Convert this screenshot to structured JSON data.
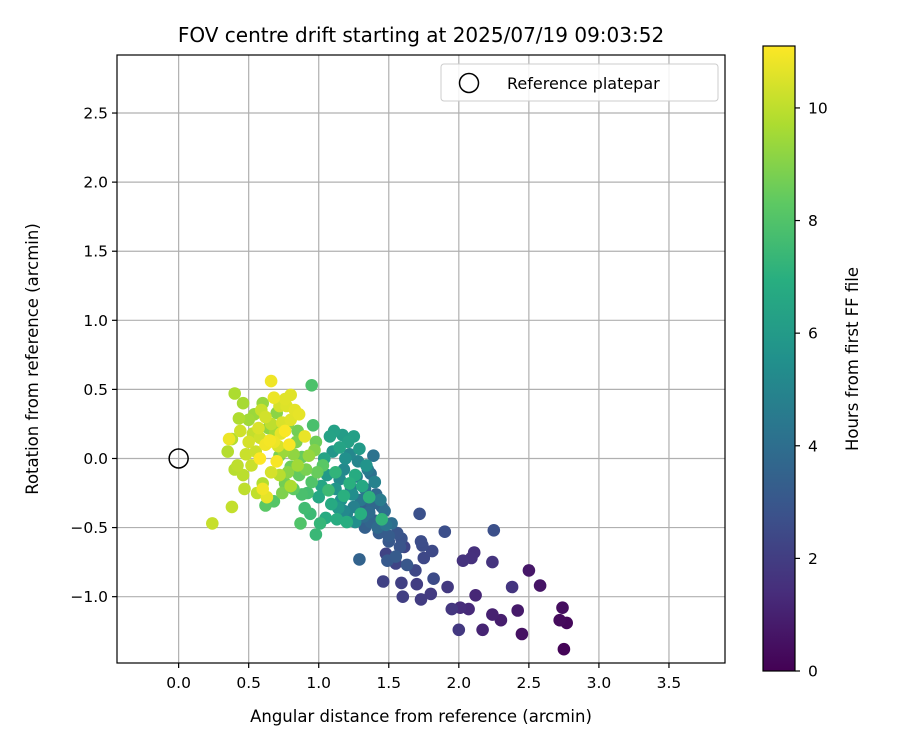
{
  "chart_data": {
    "type": "scatter",
    "title": "FOV centre drift starting at 2025/07/19 09:03:52",
    "xlabel": "Angular distance from reference (arcmin)",
    "ylabel": "Rotation from reference (arcmin)",
    "xlim": [
      -0.44,
      3.9
    ],
    "ylim": [
      -1.48,
      2.92
    ],
    "xticks": [
      0.0,
      0.5,
      1.0,
      1.5,
      2.0,
      2.5,
      3.0,
      3.5
    ],
    "xtick_labels": [
      "0.0",
      "0.5",
      "1.0",
      "1.5",
      "2.0",
      "2.5",
      "3.0",
      "3.5"
    ],
    "yticks": [
      -1.0,
      -0.5,
      0.0,
      0.5,
      1.0,
      1.5,
      2.0,
      2.5
    ],
    "ytick_labels": [
      "−1.0",
      "−0.5",
      "0.0",
      "0.5",
      "1.0",
      "1.5",
      "2.0",
      "2.5"
    ],
    "grid": true,
    "colormap": "viridis",
    "colorbar": {
      "label": "Hours from first FF file",
      "range": [
        0,
        11.1
      ],
      "ticks": [
        0,
        2,
        4,
        6,
        8,
        10
      ],
      "tick_labels": [
        "0",
        "2",
        "4",
        "6",
        "8",
        "10"
      ]
    },
    "legend": {
      "placement": "top-right",
      "entries": [
        {
          "label": "Reference platepar",
          "marker": "open-circle"
        }
      ]
    },
    "reference_point": {
      "x": 0.0,
      "y": 0.0
    },
    "points_columns": [
      "x",
      "y",
      "hours"
    ],
    "points": [
      [
        2.75,
        -1.38,
        0.1
      ],
      [
        2.77,
        -1.19,
        0.2
      ],
      [
        2.72,
        -1.17,
        0.3
      ],
      [
        2.74,
        -1.08,
        0.4
      ],
      [
        2.45,
        -1.27,
        0.5
      ],
      [
        2.58,
        -0.92,
        0.6
      ],
      [
        2.5,
        -0.81,
        0.7
      ],
      [
        2.42,
        -1.1,
        0.8
      ],
      [
        2.3,
        -1.17,
        0.9
      ],
      [
        2.24,
        -1.13,
        1.0
      ],
      [
        2.17,
        -1.24,
        1.1
      ],
      [
        2.12,
        -0.99,
        1.2
      ],
      [
        2.07,
        -1.09,
        1.3
      ],
      [
        2.01,
        -1.08,
        1.4
      ],
      [
        2.11,
        -0.68,
        1.5
      ],
      [
        2.09,
        -0.72,
        1.55
      ],
      [
        2.03,
        -0.74,
        1.6
      ],
      [
        2.24,
        -0.75,
        1.65
      ],
      [
        2.38,
        -0.93,
        1.7
      ],
      [
        1.95,
        -1.09,
        1.75
      ],
      [
        2.0,
        -1.24,
        1.8
      ],
      [
        1.92,
        -0.93,
        1.85
      ],
      [
        1.8,
        -0.98,
        1.9
      ],
      [
        1.73,
        -1.02,
        1.95
      ],
      [
        1.7,
        -0.91,
        2.0
      ],
      [
        1.6,
        -1.0,
        2.05
      ],
      [
        1.59,
        -0.9,
        2.1
      ],
      [
        1.46,
        -0.89,
        2.15
      ],
      [
        1.48,
        -0.69,
        2.2
      ],
      [
        1.55,
        -0.76,
        2.25
      ],
      [
        1.61,
        -0.64,
        2.3
      ],
      [
        1.69,
        -0.81,
        2.35
      ],
      [
        1.75,
        -0.72,
        2.4
      ],
      [
        1.81,
        -0.67,
        2.45
      ],
      [
        1.82,
        -0.87,
        2.5
      ],
      [
        1.74,
        -0.63,
        2.55
      ],
      [
        1.73,
        -0.6,
        2.6
      ],
      [
        1.9,
        -0.53,
        2.65
      ],
      [
        2.25,
        -0.52,
        2.7
      ],
      [
        1.72,
        -0.4,
        2.75
      ],
      [
        1.59,
        -0.58,
        2.8
      ],
      [
        1.56,
        -0.54,
        2.9
      ],
      [
        1.63,
        -0.77,
        3.0
      ],
      [
        1.5,
        -0.6,
        3.05
      ],
      [
        1.49,
        -0.74,
        3.1
      ],
      [
        1.55,
        -0.71,
        3.15
      ],
      [
        1.43,
        -0.54,
        3.2
      ],
      [
        1.4,
        -0.45,
        3.3
      ],
      [
        1.33,
        -0.5,
        3.4
      ],
      [
        1.29,
        -0.73,
        3.5
      ],
      [
        1.45,
        -0.35,
        3.6
      ],
      [
        1.38,
        -0.33,
        3.7
      ],
      [
        1.41,
        -0.26,
        3.8
      ],
      [
        1.36,
        -0.39,
        3.85
      ],
      [
        1.32,
        -0.42,
        3.9
      ],
      [
        1.47,
        -0.38,
        4.0
      ],
      [
        1.37,
        -0.11,
        4.1
      ],
      [
        1.39,
        0.02,
        4.2
      ],
      [
        1.33,
        -0.22,
        4.3
      ],
      [
        1.3,
        -0.3,
        4.4
      ],
      [
        1.35,
        -0.08,
        4.5
      ],
      [
        1.27,
        -0.13,
        4.6
      ],
      [
        1.23,
        -0.21,
        4.7
      ],
      [
        1.25,
        -0.35,
        4.8
      ],
      [
        1.2,
        -0.4,
        4.9
      ],
      [
        1.28,
        -0.02,
        5.0
      ],
      [
        1.22,
        0.03,
        5.1
      ],
      [
        1.18,
        -0.08,
        5.2
      ],
      [
        1.15,
        -0.15,
        5.3
      ],
      [
        1.24,
        -0.26,
        5.4
      ],
      [
        1.19,
        0.0,
        5.5
      ],
      [
        1.16,
        -0.3,
        5.6
      ],
      [
        1.12,
        -0.22,
        5.7
      ],
      [
        1.1,
        0.05,
        5.8
      ],
      [
        1.14,
        -0.36,
        5.9
      ],
      [
        1.06,
        -0.12,
        6.0
      ],
      [
        1.17,
        0.17,
        6.1
      ],
      [
        1.25,
        0.16,
        6.2
      ],
      [
        1.21,
        0.12,
        6.25
      ],
      [
        1.11,
        0.2,
        6.3
      ],
      [
        1.08,
        0.16,
        6.35
      ],
      [
        1.04,
        0.0,
        6.4
      ],
      [
        1.02,
        -0.2,
        6.5
      ],
      [
        1.0,
        -0.28,
        6.6
      ],
      [
        1.09,
        -0.33,
        6.7
      ],
      [
        1.05,
        -0.43,
        6.8
      ],
      [
        1.13,
        -0.44,
        6.85
      ],
      [
        1.2,
        -0.46,
        6.9
      ],
      [
        1.3,
        -0.4,
        6.95
      ],
      [
        1.22,
        -0.18,
        7.0
      ],
      [
        1.36,
        -0.28,
        7.1
      ],
      [
        1.45,
        -0.44,
        7.2
      ],
      [
        1.01,
        -0.47,
        7.3
      ],
      [
        0.98,
        -0.55,
        7.4
      ],
      [
        0.94,
        -0.4,
        7.5
      ],
      [
        0.9,
        -0.36,
        7.6
      ],
      [
        0.92,
        -0.25,
        7.7
      ],
      [
        0.96,
        0.24,
        7.8
      ],
      [
        0.95,
        0.53,
        7.9
      ],
      [
        0.87,
        -0.47,
        8.0
      ],
      [
        0.68,
        -0.31,
        8.1
      ],
      [
        0.62,
        -0.34,
        8.2
      ],
      [
        0.82,
        -0.22,
        8.3
      ],
      [
        0.86,
        -0.12,
        8.4
      ],
      [
        0.88,
        0.01,
        8.5
      ],
      [
        0.8,
        -0.06,
        8.6
      ],
      [
        0.76,
        -0.18,
        8.7
      ],
      [
        0.72,
        0.02,
        8.8
      ],
      [
        0.84,
        0.12,
        8.9
      ],
      [
        0.78,
        0.25,
        9.0
      ],
      [
        0.7,
        0.33,
        9.1
      ],
      [
        0.64,
        0.22,
        9.2
      ],
      [
        0.6,
        0.4,
        9.3
      ],
      [
        0.54,
        0.32,
        9.4
      ],
      [
        0.5,
        0.28,
        9.5
      ],
      [
        0.46,
        0.4,
        9.6
      ],
      [
        0.4,
        0.47,
        9.7
      ],
      [
        0.43,
        0.29,
        9.75
      ],
      [
        0.38,
        0.14,
        9.8
      ],
      [
        0.35,
        0.05,
        9.85
      ],
      [
        0.4,
        -0.08,
        9.9
      ],
      [
        0.46,
        -0.12,
        9.95
      ],
      [
        0.47,
        -0.22,
        10.0
      ],
      [
        0.56,
        -0.25,
        10.05
      ],
      [
        0.38,
        -0.35,
        10.1
      ],
      [
        0.24,
        -0.47,
        10.15
      ],
      [
        0.52,
        -0.05,
        10.2
      ],
      [
        0.55,
        0.05,
        10.25
      ],
      [
        0.58,
        0.15,
        10.3
      ],
      [
        0.62,
        0.3,
        10.35
      ],
      [
        0.66,
        -0.1,
        10.4
      ],
      [
        0.71,
        0.09,
        10.45
      ],
      [
        0.74,
        0.26,
        10.5
      ],
      [
        0.77,
        0.38,
        10.55
      ],
      [
        0.8,
        0.46,
        10.6
      ],
      [
        0.83,
        0.35,
        10.65
      ],
      [
        0.86,
        0.32,
        10.7
      ],
      [
        0.9,
        0.16,
        10.75
      ],
      [
        0.68,
        0.44,
        10.8
      ],
      [
        0.66,
        0.56,
        10.85
      ],
      [
        0.6,
        -0.22,
        10.9
      ],
      [
        0.65,
        0.13,
        10.95
      ],
      [
        0.7,
        -0.02,
        11.0
      ],
      [
        0.76,
        0.2,
        11.05
      ],
      [
        0.58,
        0.0,
        11.1
      ],
      [
        0.62,
        0.1,
        10.9
      ],
      [
        0.68,
        0.12,
        10.8
      ],
      [
        0.73,
        0.18,
        10.7
      ],
      [
        0.8,
        0.28,
        10.6
      ],
      [
        0.57,
        0.22,
        10.5
      ],
      [
        0.5,
        0.12,
        10.4
      ],
      [
        0.44,
        0.2,
        10.3
      ],
      [
        0.48,
        0.03,
        10.2
      ],
      [
        0.53,
        0.18,
        10.1
      ],
      [
        0.72,
        -0.12,
        9.9
      ],
      [
        0.8,
        -0.2,
        9.7
      ],
      [
        0.85,
        -0.05,
        9.5
      ],
      [
        0.93,
        0.02,
        9.3
      ],
      [
        0.97,
        0.06,
        9.0
      ],
      [
        0.91,
        -0.08,
        8.8
      ],
      [
        0.99,
        -0.1,
        8.5
      ],
      [
        1.03,
        -0.05,
        8.2
      ],
      [
        0.95,
        -0.17,
        8.0
      ],
      [
        0.88,
        -0.26,
        7.8
      ],
      [
        1.07,
        -0.23,
        7.5
      ],
      [
        1.12,
        -0.1,
        7.2
      ],
      [
        1.18,
        -0.27,
        7.0
      ],
      [
        1.26,
        -0.12,
        6.8
      ],
      [
        1.31,
        -0.2,
        6.6
      ],
      [
        1.15,
        0.08,
        6.4
      ],
      [
        1.29,
        0.07,
        6.0
      ],
      [
        1.34,
        -0.05,
        5.7
      ],
      [
        1.26,
        -0.46,
        5.4
      ],
      [
        1.18,
        -0.38,
        5.2
      ],
      [
        1.4,
        -0.17,
        4.9
      ],
      [
        1.44,
        -0.3,
        4.6
      ],
      [
        1.48,
        -0.48,
        4.3
      ],
      [
        1.52,
        -0.47,
        4.0
      ],
      [
        1.42,
        -0.5,
        3.8
      ],
      [
        1.37,
        -0.46,
        3.6
      ],
      [
        1.33,
        -0.36,
        3.4
      ],
      [
        1.28,
        -0.45,
        3.3
      ],
      [
        1.5,
        -0.56,
        3.2
      ],
      [
        1.58,
        -0.64,
        2.9
      ],
      [
        0.98,
        0.12,
        8.6
      ],
      [
        0.75,
        0.05,
        9.4
      ],
      [
        0.69,
        0.19,
        9.6
      ],
      [
        0.82,
        0.03,
        9.2
      ],
      [
        0.78,
        -0.1,
        9.1
      ],
      [
        0.85,
        0.2,
        8.7
      ],
      [
        0.74,
        -0.25,
        8.9
      ],
      [
        0.6,
        -0.18,
        9.8
      ],
      [
        0.66,
        0.25,
        10.0
      ],
      [
        0.59,
        0.35,
        10.2
      ],
      [
        0.72,
        0.38,
        10.4
      ],
      [
        0.76,
        0.43,
        10.6
      ],
      [
        0.42,
        -0.05,
        10.0
      ],
      [
        0.36,
        0.14,
        10.8
      ],
      [
        0.79,
        0.1,
        11.0
      ],
      [
        0.63,
        -0.28,
        10.7
      ]
    ]
  }
}
